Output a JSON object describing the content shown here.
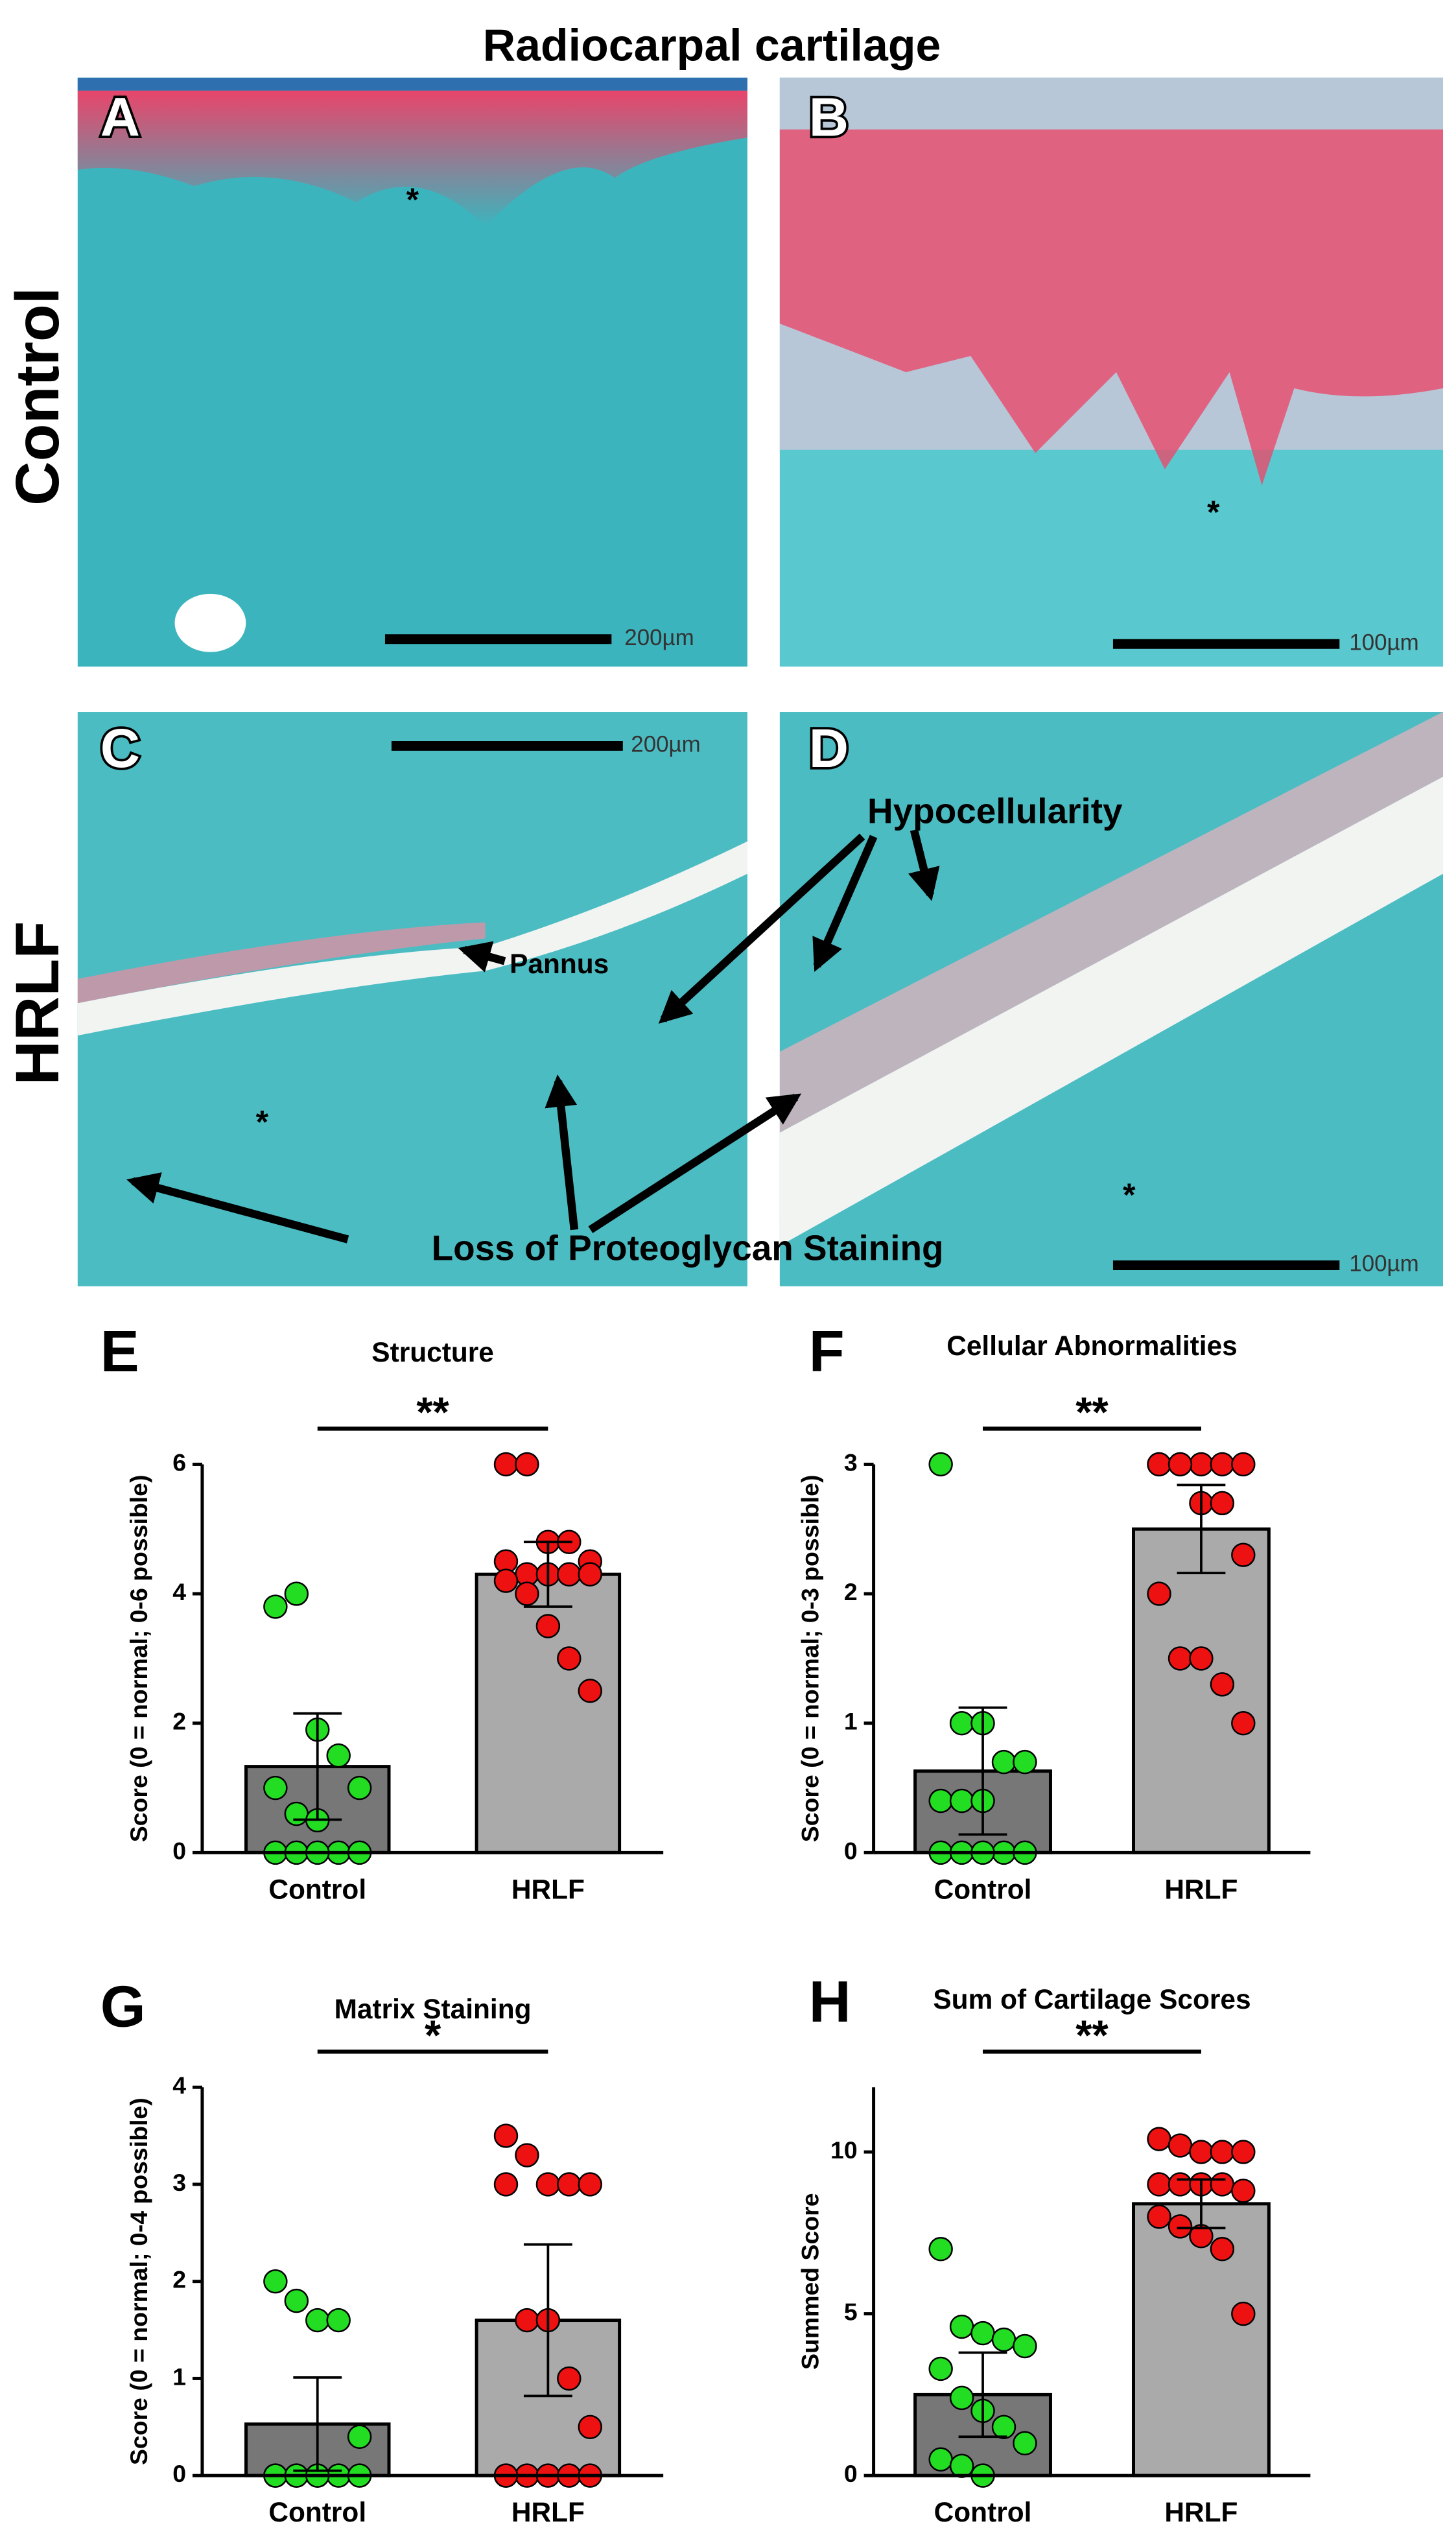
{
  "figure": {
    "title": "Radiocarpal cartilage",
    "row_labels": [
      "Control",
      "HRLF"
    ],
    "panels": [
      {
        "letter": "A",
        "scale_bar": "200µm",
        "asterisk": "*"
      },
      {
        "letter": "B",
        "scale_bar": "100µm",
        "asterisk": "*"
      },
      {
        "letter": "C",
        "scale_bar": "200µm",
        "asterisk": "*"
      },
      {
        "letter": "D",
        "scale_bar": "100µm",
        "asterisk": "*"
      }
    ],
    "annotations": {
      "hypocellularity": "Hypocellularity",
      "pannus": "Pannus",
      "loss": "Loss of Proteoglycan Staining"
    }
  },
  "chart_data": [
    {
      "type": "bar",
      "panel": "E",
      "title": "Structure",
      "y_label": "Score (0 = normal; 0-6 possible)",
      "annotation": "**",
      "categories": [
        "Control",
        "HRLF"
      ],
      "values": [
        1.33,
        4.3
      ],
      "errors": [
        0.82,
        0.5
      ],
      "colors": [
        "#777777",
        "#aaaaaa"
      ],
      "points": [
        {
          "color": "#22dd22",
          "values": [
            3.8,
            4.0,
            1.9,
            1.5,
            1.0,
            1.0,
            0.6,
            0.5,
            0,
            0,
            0,
            0,
            0
          ]
        },
        {
          "color": "#ee1111",
          "values": [
            6,
            6,
            4.8,
            4.8,
            4.5,
            4.5,
            4.3,
            4.3,
            4.3,
            4.3,
            4.2,
            4.0,
            3.5,
            3.0,
            2.5
          ]
        }
      ],
      "ylim": [
        0,
        6
      ],
      "yticks": [
        0,
        2,
        4,
        6
      ]
    },
    {
      "type": "bar",
      "panel": "F",
      "title": "Cellular Abnormalities",
      "y_label": "Score (0 = normal; 0-3 possible)",
      "annotation": "**",
      "categories": [
        "Control",
        "HRLF"
      ],
      "values": [
        0.63,
        2.5
      ],
      "errors": [
        0.49,
        0.34
      ],
      "colors": [
        "#777777",
        "#aaaaaa"
      ],
      "points": [
        {
          "color": "#22dd22",
          "values": [
            3,
            1,
            1,
            0.7,
            0.7,
            0.4,
            0.4,
            0.4,
            0,
            0,
            0,
            0,
            0
          ]
        },
        {
          "color": "#ee1111",
          "values": [
            3,
            3,
            3,
            3,
            3,
            3,
            3,
            2.7,
            2.7,
            2.3,
            2,
            1.5,
            1.5,
            1.3,
            1
          ]
        }
      ],
      "ylim": [
        0,
        3
      ],
      "yticks": [
        0,
        1,
        2,
        3
      ]
    },
    {
      "type": "bar",
      "panel": "G",
      "title": "Matrix Staining",
      "y_label": "Score (0 = normal; 0-4 possible)",
      "annotation": "*",
      "categories": [
        "Control",
        "HRLF"
      ],
      "values": [
        0.53,
        1.6
      ],
      "errors": [
        0.48,
        0.78
      ],
      "colors": [
        "#777777",
        "#aaaaaa"
      ],
      "points": [
        {
          "color": "#22dd22",
          "values": [
            2,
            1.8,
            1.6,
            1.6,
            0.4,
            0,
            0,
            0,
            0,
            0,
            0,
            0,
            0
          ]
        },
        {
          "color": "#ee1111",
          "values": [
            3.5,
            3.3,
            3,
            3,
            3,
            3,
            1.6,
            1.6,
            1.0,
            0.5,
            0,
            0,
            0,
            0,
            0,
            0
          ]
        }
      ],
      "ylim": [
        0,
        4
      ],
      "yticks": [
        0,
        1,
        2,
        3,
        4
      ]
    },
    {
      "type": "bar",
      "panel": "H",
      "title": "Sum of Cartilage Scores",
      "y_label": "Summed Score",
      "annotation": "**",
      "categories": [
        "Control",
        "HRLF"
      ],
      "values": [
        2.5,
        8.4
      ],
      "errors": [
        1.3,
        0.75
      ],
      "colors": [
        "#777777",
        "#aaaaaa"
      ],
      "points": [
        {
          "color": "#22dd22",
          "values": [
            7,
            4.6,
            4.4,
            4.2,
            4.0,
            3.3,
            2.4,
            2.0,
            1.5,
            1.0,
            0.5,
            0.3,
            0
          ]
        },
        {
          "color": "#ee1111",
          "values": [
            10.4,
            10.2,
            10,
            10,
            10,
            9,
            9,
            9,
            9,
            8.8,
            8,
            7.7,
            7.4,
            7,
            5
          ]
        }
      ],
      "ylim": [
        0,
        12
      ],
      "yticks": [
        0,
        5,
        10
      ]
    }
  ]
}
